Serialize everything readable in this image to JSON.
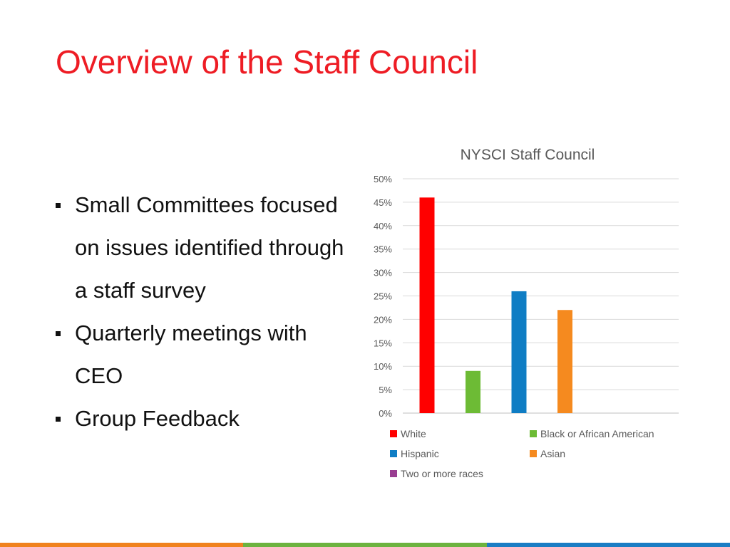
{
  "slide": {
    "title": "Overview of the Staff Council",
    "bullets": [
      "Small Committees focused on issues identified through a staff survey",
      "Quarterly meetings with CEO",
      "Group Feedback"
    ]
  },
  "colors": {
    "title": "#ee1c24",
    "footer": [
      "#f0821e",
      "#6cb33f",
      "#1a7dc4"
    ]
  },
  "chart_data": {
    "type": "bar",
    "title": "NYSCI Staff Council",
    "xlabel": "",
    "ylabel": "",
    "ylim": [
      0,
      50
    ],
    "y_ticks": [
      "0%",
      "5%",
      "10%",
      "15%",
      "20%",
      "25%",
      "30%",
      "35%",
      "40%",
      "45%",
      "50%"
    ],
    "grid": true,
    "legend_position": "bottom",
    "series": [
      {
        "name": "White",
        "value": 46,
        "color": "#ff0000"
      },
      {
        "name": "Black or African American",
        "value": 9,
        "color": "#6dbb35"
      },
      {
        "name": "Hispanic",
        "value": 26,
        "color": "#0f7dc4"
      },
      {
        "name": "Asian",
        "value": 22,
        "color": "#f58a1f"
      },
      {
        "name": "Two or more races",
        "value": 0,
        "color": "#993d91"
      }
    ]
  }
}
